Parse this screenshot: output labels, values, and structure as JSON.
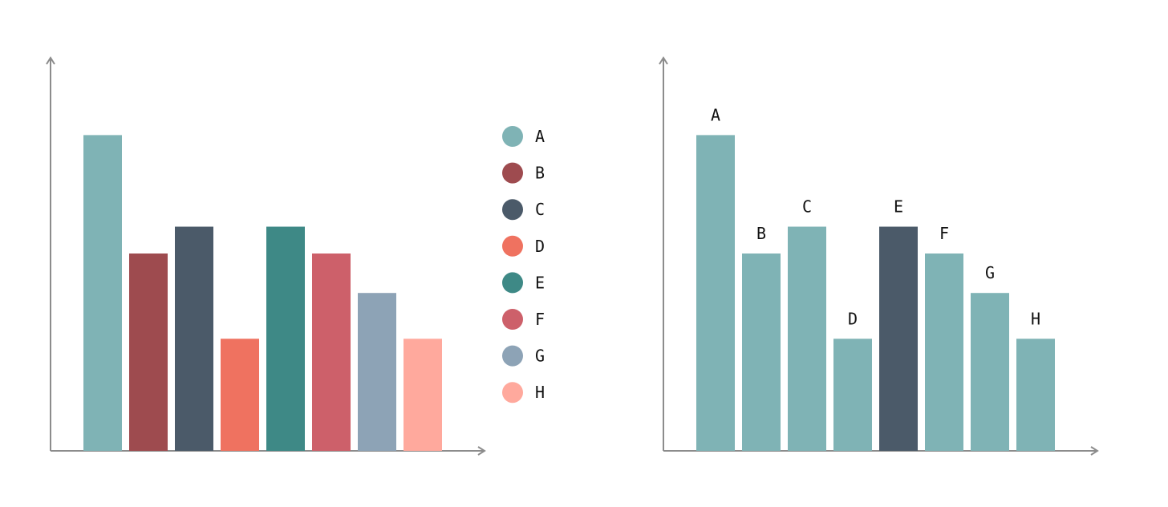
{
  "chart_data": [
    {
      "type": "bar",
      "categories": [
        "A",
        "B",
        "C",
        "D",
        "E",
        "F",
        "G",
        "H"
      ],
      "values": [
        100,
        62.5,
        71,
        35.5,
        71,
        62.5,
        50,
        35.5
      ],
      "colors": [
        "#7fb3b5",
        "#9e4b4f",
        "#4b5a69",
        "#ef7260",
        "#3e8986",
        "#cd606a",
        "#8da3b6",
        "#ffa99d"
      ],
      "legend": "right",
      "legend_items": [
        "A",
        "B",
        "C",
        "D",
        "E",
        "F",
        "G",
        "H"
      ],
      "axis_ticks": false,
      "grid": false,
      "title": "",
      "xlabel": "",
      "ylabel": "",
      "ylim": [
        0,
        125
      ]
    },
    {
      "type": "bar",
      "categories": [
        "A",
        "B",
        "C",
        "D",
        "E",
        "F",
        "G",
        "H"
      ],
      "values": [
        100,
        62.5,
        71,
        35.5,
        71,
        62.5,
        50,
        35.5
      ],
      "colors": [
        "#7fb3b5",
        "#7fb3b5",
        "#7fb3b5",
        "#7fb3b5",
        "#4b5a69",
        "#7fb3b5",
        "#7fb3b5",
        "#7fb3b5"
      ],
      "bar_labels": [
        "A",
        "B",
        "C",
        "D",
        "E",
        "F",
        "G",
        "H"
      ],
      "highlight": "E",
      "axis_ticks": false,
      "grid": false,
      "title": "",
      "xlabel": "",
      "ylabel": "",
      "ylim": [
        0,
        125
      ]
    }
  ]
}
